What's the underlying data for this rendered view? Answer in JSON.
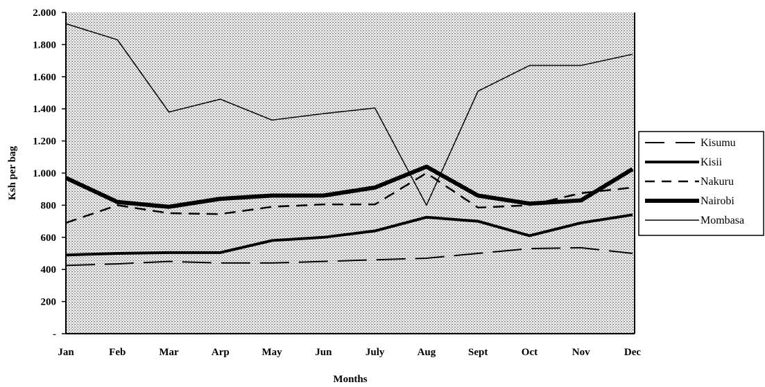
{
  "chart_data": {
    "type": "line",
    "xlabel": "Months",
    "ylabel": "Ksh per bag",
    "categories": [
      "Jan",
      "Feb",
      "Mar",
      "Arp",
      "May",
      "Jun",
      "July",
      "Aug",
      "Sept",
      "Oct",
      "Nov",
      "Dec"
    ],
    "ylim": [
      0,
      2000
    ],
    "yticks": [
      {
        "value": 0,
        "label": "-"
      },
      {
        "value": 200,
        "label": "200"
      },
      {
        "value": 400,
        "label": "400"
      },
      {
        "value": 600,
        "label": "600"
      },
      {
        "value": 800,
        "label": "800"
      },
      {
        "value": 1000,
        "label": "1.000"
      },
      {
        "value": 1200,
        "label": "1.200"
      },
      {
        "value": 1400,
        "label": "1.400"
      },
      {
        "value": 1600,
        "label": "1.600"
      },
      {
        "value": 1800,
        "label": "1.800"
      },
      {
        "value": 2000,
        "label": "2.000"
      }
    ],
    "grid": false,
    "legend_position": "right",
    "background": "stippled gray",
    "series": [
      {
        "name": "Kisumu",
        "style": "long-dash",
        "values": [
          425,
          435,
          450,
          440,
          440,
          450,
          460,
          470,
          500,
          530,
          535,
          500
        ]
      },
      {
        "name": "Kisii",
        "style": "thick-solid",
        "values": [
          490,
          500,
          505,
          505,
          580,
          600,
          640,
          725,
          700,
          610,
          690,
          740
        ]
      },
      {
        "name": "Nakuru",
        "style": "dashed",
        "values": [
          690,
          800,
          750,
          745,
          790,
          805,
          805,
          1000,
          785,
          800,
          875,
          910
        ]
      },
      {
        "name": "Nairobi",
        "style": "extra-thick-solid",
        "values": [
          970,
          820,
          790,
          840,
          860,
          860,
          910,
          1040,
          860,
          810,
          830,
          1025
        ]
      },
      {
        "name": "Mombasa",
        "style": "thin-solid",
        "values": [
          1930,
          1830,
          1380,
          1460,
          1330,
          1370,
          1405,
          800,
          1510,
          1670,
          1670,
          1740
        ]
      }
    ]
  }
}
